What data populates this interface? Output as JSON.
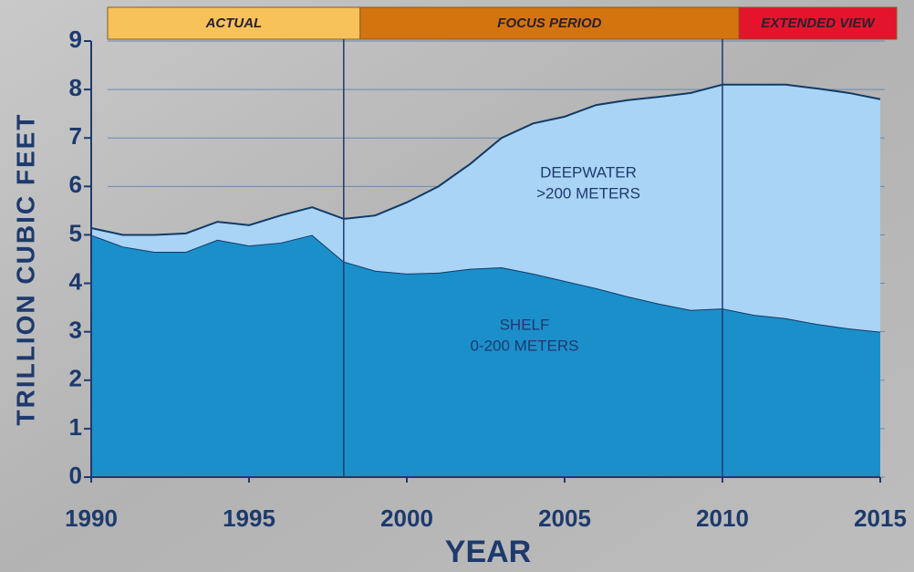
{
  "chart_data": {
    "type": "stacked-area",
    "x_label": "YEAR",
    "y_label": "TRILLION CUBIC FEET",
    "x": [
      1990,
      1991,
      1992,
      1993,
      1994,
      1995,
      1996,
      1997,
      1998,
      1999,
      2000,
      2001,
      2002,
      2003,
      2004,
      2005,
      2006,
      2007,
      2008,
      2009,
      2010,
      2011,
      2012,
      2013,
      2014,
      2015
    ],
    "series": [
      {
        "name": "SHELF",
        "color": "#1b8fca",
        "values": [
          5.0,
          4.76,
          4.65,
          4.65,
          4.9,
          4.78,
          4.84,
          5.0,
          4.45,
          4.26,
          4.2,
          4.22,
          4.3,
          4.33,
          4.2,
          4.05,
          3.9,
          3.73,
          3.58,
          3.45,
          3.48,
          3.35,
          3.28,
          3.16,
          3.07,
          3.0
        ]
      },
      {
        "name": "DEEPWATER",
        "color": "#a9d4f5",
        "values": [
          0.14,
          0.24,
          0.35,
          0.38,
          0.37,
          0.42,
          0.56,
          0.57,
          0.88,
          1.14,
          1.47,
          1.78,
          2.16,
          2.67,
          3.1,
          3.39,
          3.78,
          4.05,
          4.27,
          4.48,
          4.62,
          4.75,
          4.82,
          4.86,
          4.86,
          4.8
        ]
      }
    ],
    "annotations": [
      {
        "text": "DEEPWATER",
        "sub": ">200 METERS"
      },
      {
        "text": "SHELF",
        "sub": "0-200 METERS"
      }
    ],
    "periods": [
      {
        "label": "ACTUAL",
        "start": 1990,
        "end": 1998,
        "color": "#f7c25a"
      },
      {
        "label": "FOCUS PERIOD",
        "start": 1998,
        "end": 2010,
        "color": "#d4740f"
      },
      {
        "label": "EXTENDED VIEW",
        "start": 2010,
        "end": 2015,
        "color": "#e3142b"
      }
    ],
    "xlim": [
      1990,
      2015
    ],
    "xticks": [
      1990,
      1995,
      2000,
      2005,
      2010,
      2015
    ],
    "ylim": [
      0,
      9
    ],
    "yticks": [
      0,
      1,
      2,
      3,
      4,
      5,
      6,
      7,
      8,
      9
    ],
    "grid": true
  }
}
